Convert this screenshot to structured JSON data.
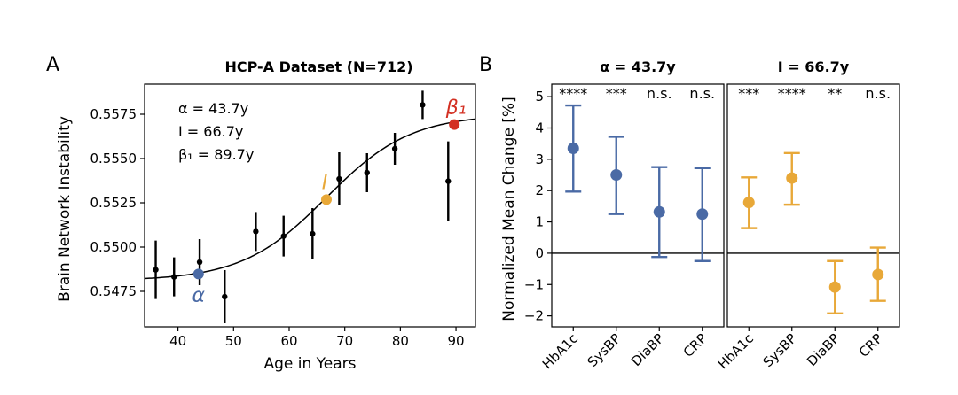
{
  "colors": {
    "alpha": "#4a6aa5",
    "inflection": "#e8a838",
    "beta": "#d32f22",
    "black": "#000000"
  },
  "chart_data": [
    {
      "panel_label": "A",
      "type": "scatter",
      "title": "HCP-A Dataset (N=712)",
      "xlabel": "Age in Years",
      "ylabel": "Brain Network Instability",
      "xlim": [
        34,
        93.5
      ],
      "ylim": [
        0.5455,
        0.5592
      ],
      "xticks": [
        40,
        50,
        60,
        70,
        80,
        90
      ],
      "yticks": [
        0.5475,
        0.55,
        0.5525,
        0.555,
        0.5575
      ],
      "ytick_labels": [
        "0.5475",
        "0.5500",
        "0.5525",
        "0.5550",
        "0.5575"
      ],
      "points": [
        {
          "x": 36.0,
          "y": 0.54872,
          "err": 0.00165
        },
        {
          "x": 39.3,
          "y": 0.54832,
          "err": 0.0011
        },
        {
          "x": 43.9,
          "y": 0.54915,
          "err": 0.0013
        },
        {
          "x": 48.4,
          "y": 0.5472,
          "err": 0.0015
        },
        {
          "x": 54.0,
          "y": 0.55088,
          "err": 0.0011
        },
        {
          "x": 59.0,
          "y": 0.55062,
          "err": 0.00115
        },
        {
          "x": 64.2,
          "y": 0.55075,
          "err": 0.00145
        },
        {
          "x": 69.0,
          "y": 0.55385,
          "err": 0.0015
        },
        {
          "x": 74.0,
          "y": 0.5542,
          "err": 0.0011
        },
        {
          "x": 79.0,
          "y": 0.55555,
          "err": 0.0009
        },
        {
          "x": 84.0,
          "y": 0.55803,
          "err": 0.0008
        },
        {
          "x": 88.6,
          "y": 0.55372,
          "err": 0.00225
        }
      ],
      "fit_curve": {
        "baseline": 0.5481,
        "amplitude": 0.0094,
        "inflection": 66.7,
        "scale": 7.6
      },
      "markers": [
        {
          "name": "alpha",
          "label": "α",
          "x": 43.7,
          "y": 0.54848
        },
        {
          "name": "inflection",
          "label": "I",
          "x": 66.7,
          "y": 0.55268
        },
        {
          "name": "beta",
          "label": "β₁",
          "x": 89.7,
          "y": 0.55692
        }
      ],
      "annotations": [
        "α = 43.7y",
        "I = 66.7y",
        "β₁ = 89.7y"
      ]
    },
    {
      "panel_label": "B",
      "type": "scatter",
      "ylabel": "Normalized Mean Change [%]",
      "ylim": [
        -2.35,
        5.4
      ],
      "yticks": [
        -2,
        -1,
        0,
        1,
        2,
        3,
        4,
        5
      ],
      "categories": [
        "HbA1c",
        "SysBP",
        "DiaBP",
        "CRP"
      ],
      "subplots": [
        {
          "title": "α = 43.7y",
          "color": "#4a6aa5",
          "values": [
            3.35,
            2.5,
            1.32,
            1.25
          ],
          "lower": [
            1.97,
            1.25,
            -0.12,
            -0.25
          ],
          "upper": [
            4.72,
            3.72,
            2.75,
            2.72
          ],
          "significance": [
            "****",
            "***",
            "n.s.",
            "n.s."
          ]
        },
        {
          "title": "I = 66.7y",
          "color": "#e8a838",
          "values": [
            1.62,
            2.4,
            -1.08,
            -0.68
          ],
          "lower": [
            0.8,
            1.55,
            -1.92,
            -1.52
          ],
          "upper": [
            2.42,
            3.2,
            -0.25,
            0.18
          ],
          "significance": [
            "***",
            "****",
            "**",
            "n.s."
          ]
        }
      ]
    }
  ]
}
